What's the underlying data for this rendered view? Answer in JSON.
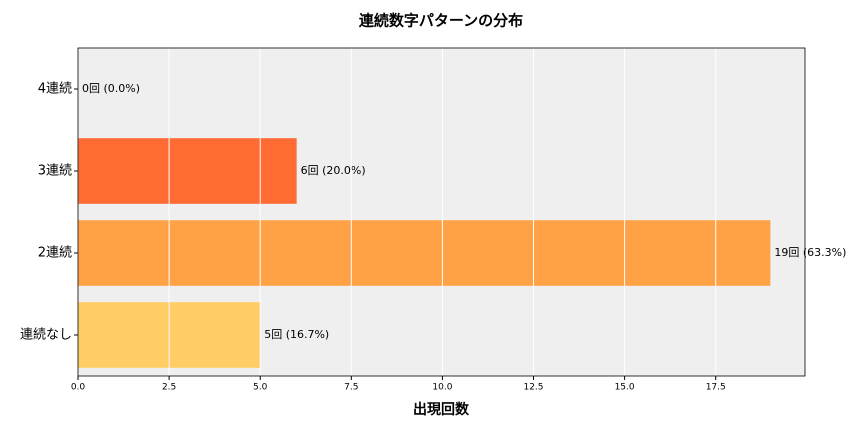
{
  "chart_data": {
    "type": "barh",
    "title": "連続数字パターンの分布",
    "x_label": "出現回数",
    "categories": [
      "連続なし",
      "2連続",
      "3連続",
      "4連続"
    ],
    "values": [
      5,
      19,
      6,
      0
    ],
    "value_labels": [
      "5回 (16.7%)",
      "19回 (63.3%)",
      "6回 (20.0%)",
      "0回 (0.0%)"
    ],
    "colors": [
      "#ffcc66",
      "#ffa245",
      "#ff6b33",
      "#ff4500"
    ],
    "xlim": [
      0,
      19.95
    ],
    "xticks": [
      {
        "value": 0,
        "label": "0.0"
      },
      {
        "value": 2.5,
        "label": "2.5"
      },
      {
        "value": 5,
        "label": "5.0"
      },
      {
        "value": 7.5,
        "label": "7.5"
      },
      {
        "value": 10,
        "label": "10.0"
      },
      {
        "value": 12.5,
        "label": "12.5"
      },
      {
        "value": 15,
        "label": "15.0"
      },
      {
        "value": 17.5,
        "label": "17.5"
      }
    ],
    "grid": true
  }
}
